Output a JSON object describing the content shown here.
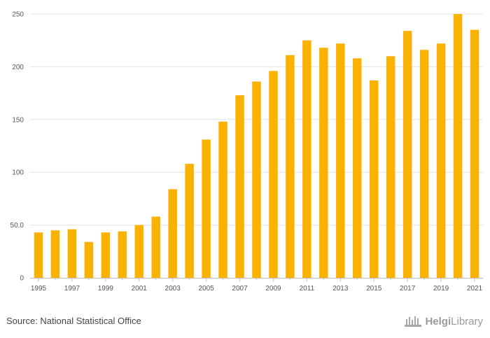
{
  "chart_data": {
    "type": "bar",
    "categories": [
      "1995",
      "1996",
      "1997",
      "1998",
      "1999",
      "2000",
      "2001",
      "2002",
      "2003",
      "2004",
      "2005",
      "2006",
      "2007",
      "2008",
      "2009",
      "2010",
      "2011",
      "2012",
      "2013",
      "2014",
      "2015",
      "2016",
      "2017",
      "2018",
      "2019",
      "2020",
      "2021"
    ],
    "values": [
      43,
      45,
      46,
      34,
      43,
      44,
      50,
      58,
      84,
      108,
      131,
      148,
      173,
      186,
      196,
      211,
      225,
      218,
      222,
      208,
      187,
      210,
      234,
      216,
      222,
      250,
      235
    ],
    "x_tick_labels": [
      "1995",
      "1997",
      "1999",
      "2001",
      "2003",
      "2005",
      "2007",
      "2009",
      "2011",
      "2013",
      "2015",
      "2017",
      "2019",
      "2021"
    ],
    "y_ticks": [
      0,
      50,
      100,
      150,
      200,
      250
    ],
    "y_tick_labels": [
      "0",
      "50.0",
      "100",
      "150",
      "200",
      "250"
    ],
    "ylim": [
      0,
      250
    ],
    "title": "",
    "xlabel": "",
    "ylabel": "",
    "grid": true,
    "bar_color": "#f9b200"
  },
  "footer": {
    "source": "Source: National Statistical Office",
    "brand_bold": "Helgi",
    "brand_light": "Library"
  }
}
